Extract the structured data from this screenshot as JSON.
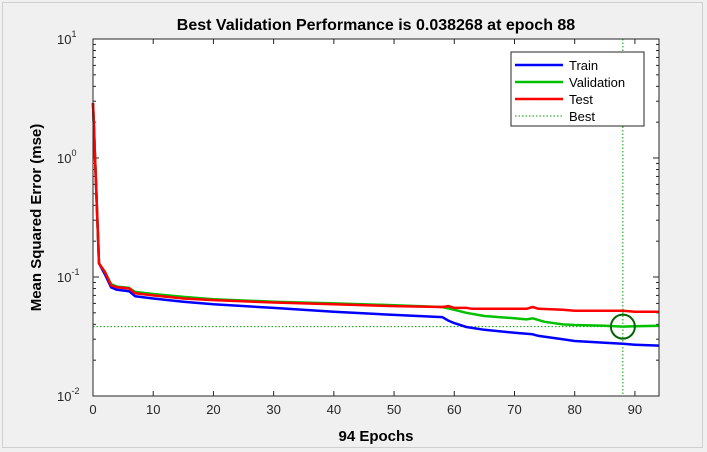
{
  "chart_data": {
    "type": "line",
    "title": "Best Validation Performance is 0.038268 at epoch 88",
    "xlabel": "94 Epochs",
    "ylabel": "Mean Squared Error  (mse)",
    "xlim": [
      0,
      94
    ],
    "ylim": [
      0.01,
      10
    ],
    "yscale": "log",
    "x_ticks": [
      0,
      10,
      20,
      30,
      40,
      50,
      60,
      70,
      80,
      90
    ],
    "y_ticks": [
      {
        "base": "10",
        "exp": "1",
        "value": 10
      },
      {
        "base": "10",
        "exp": "0",
        "value": 1
      },
      {
        "base": "10",
        "exp": "-1",
        "value": 0.1
      },
      {
        "base": "10",
        "exp": "-2",
        "value": 0.01
      }
    ],
    "legend_position": "top-right",
    "grid": false,
    "series": [
      {
        "name": "Train",
        "color": "#0000ff",
        "x": [
          0,
          1,
          2,
          3,
          4,
          5,
          6,
          7,
          10,
          15,
          20,
          30,
          40,
          50,
          58,
          59,
          60,
          62,
          65,
          70,
          73,
          74,
          78,
          80,
          85,
          88,
          90,
          94
        ],
        "y": [
          2.9,
          0.13,
          0.105,
          0.082,
          0.078,
          0.077,
          0.076,
          0.069,
          0.066,
          0.062,
          0.059,
          0.055,
          0.051,
          0.048,
          0.046,
          0.043,
          0.041,
          0.038,
          0.036,
          0.034,
          0.033,
          0.032,
          0.03,
          0.029,
          0.028,
          0.0275,
          0.027,
          0.0265
        ]
      },
      {
        "name": "Validation",
        "color": "#00c000",
        "x": [
          0,
          1,
          2,
          3,
          4,
          5,
          6,
          7,
          10,
          15,
          20,
          30,
          40,
          50,
          58,
          60,
          62,
          65,
          70,
          72,
          73,
          75,
          78,
          80,
          85,
          88,
          90,
          94
        ],
        "y": [
          2.9,
          0.13,
          0.11,
          0.087,
          0.083,
          0.082,
          0.081,
          0.075,
          0.072,
          0.068,
          0.065,
          0.062,
          0.06,
          0.058,
          0.056,
          0.053,
          0.05,
          0.047,
          0.045,
          0.044,
          0.045,
          0.042,
          0.04,
          0.0395,
          0.039,
          0.038268,
          0.0385,
          0.039
        ]
      },
      {
        "name": "Test",
        "color": "#ff0000",
        "x": [
          0,
          1,
          2,
          3,
          4,
          5,
          6,
          7,
          10,
          15,
          20,
          30,
          40,
          50,
          58,
          59,
          60,
          62,
          63,
          65,
          70,
          72,
          73,
          74,
          78,
          80,
          85,
          88,
          90,
          94
        ],
        "y": [
          2.9,
          0.13,
          0.11,
          0.085,
          0.082,
          0.081,
          0.08,
          0.073,
          0.07,
          0.066,
          0.064,
          0.061,
          0.059,
          0.057,
          0.056,
          0.057,
          0.055,
          0.055,
          0.054,
          0.054,
          0.054,
          0.054,
          0.056,
          0.054,
          0.053,
          0.052,
          0.052,
          0.052,
          0.051,
          0.051
        ]
      }
    ],
    "best": {
      "name": "Best",
      "color": "#00a000",
      "epoch": 88,
      "value": 0.038268
    }
  }
}
